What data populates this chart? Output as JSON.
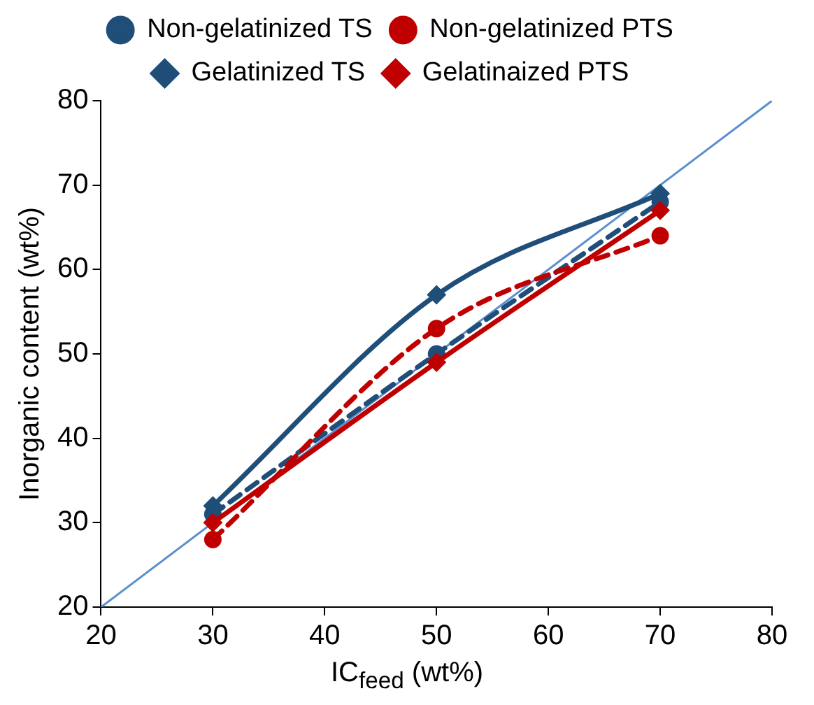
{
  "chart_data": {
    "type": "line",
    "xlabel": "IC$_{feed}$ (wt%)",
    "ylabel": "Inorganic content (wt%)",
    "x": [
      30,
      50,
      70
    ],
    "series": [
      {
        "name": "Non-gelatinized TS",
        "color": "#1f4e79",
        "values": [
          31,
          50,
          68
        ],
        "marker": "circle",
        "line_style": "dashed"
      },
      {
        "name": "Non-gelatinized PTS",
        "color": "#c00000",
        "values": [
          28,
          53,
          64
        ],
        "marker": "circle",
        "line_style": "dashed"
      },
      {
        "name": "Gelatinized TS",
        "color": "#1f4e79",
        "values": [
          32,
          57,
          69
        ],
        "marker": "diamond",
        "line_style": "solid"
      },
      {
        "name": "Gelatinaized PTS",
        "color": "#c00000",
        "values": [
          30,
          49,
          67
        ],
        "marker": "diamond",
        "line_style": "solid"
      },
      {
        "x": [
          20,
          80
        ],
        "color": "#5b8fd0",
        "values": [
          20,
          80
        ],
        "marker": "none",
        "line_style": "solid"
      }
    ],
    "xlim": [
      20,
      80
    ],
    "xticks": [
      20,
      30,
      40,
      50,
      60,
      70,
      80
    ],
    "ylim": [
      20,
      80
    ],
    "yticks": [
      20,
      30,
      40,
      50,
      60,
      70,
      80
    ],
    "grid": false,
    "legend": "top"
  }
}
